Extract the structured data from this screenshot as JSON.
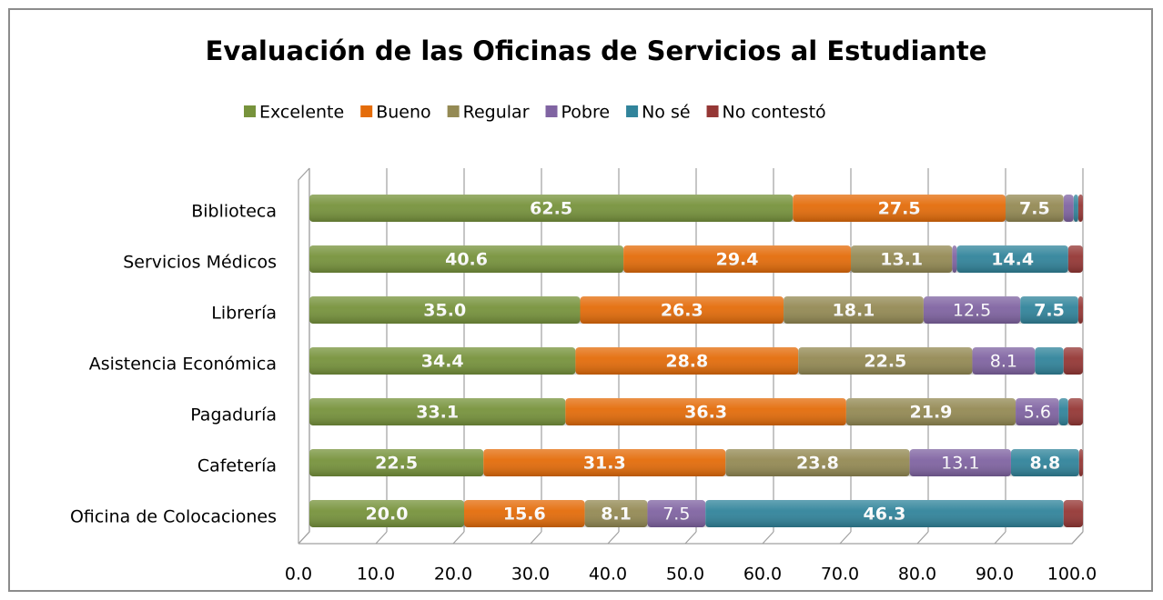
{
  "chart_data": {
    "type": "stacked-barh",
    "title": "Evaluación de las Oficinas de Servicios al Estudiante",
    "categories": [
      "Biblioteca",
      "Servicios Médicos",
      "Librería",
      "Asistencia Económica",
      "Pagaduría",
      "Cafetería",
      "Oficina de Colocaciones"
    ],
    "series": [
      {
        "name": "Excelente",
        "color": "#77933c",
        "values": [
          62.5,
          40.6,
          35.0,
          34.4,
          33.1,
          22.5,
          20.0
        ],
        "value_labels": [
          "62.5",
          "40.6",
          "35.0",
          "34.4",
          "33.1",
          "22.5",
          "20.0"
        ]
      },
      {
        "name": "Bueno",
        "color": "#e46c0a",
        "values": [
          27.5,
          29.4,
          26.3,
          28.8,
          36.3,
          31.3,
          15.6
        ],
        "value_labels": [
          "27.5",
          "29.4",
          "26.3",
          "28.8",
          "36.3",
          "31.3",
          "15.6"
        ]
      },
      {
        "name": "Regular",
        "color": "#948a54",
        "values": [
          7.5,
          13.1,
          18.1,
          22.5,
          21.9,
          23.8,
          8.1
        ],
        "value_labels": [
          "7.5",
          "13.1",
          "18.1",
          "22.5",
          "21.9",
          "23.8",
          "8.1"
        ]
      },
      {
        "name": "Pobre",
        "color": "#8064a2",
        "values": [
          1.3,
          0.6,
          12.5,
          8.1,
          5.6,
          13.1,
          7.5
        ],
        "value_labels": [
          null,
          null,
          "12.5",
          "8.1",
          "5.6",
          "13.1",
          "7.5"
        ]
      },
      {
        "name": "No sé",
        "color": "#31849b",
        "values": [
          0.6,
          14.4,
          7.5,
          3.7,
          1.2,
          8.8,
          46.3
        ],
        "value_labels": [
          null,
          "14.4",
          "7.5",
          null,
          null,
          "8.8",
          "46.3"
        ]
      },
      {
        "name": "No contestó",
        "color": "#953735",
        "values": [
          0.6,
          1.9,
          0.6,
          2.5,
          1.9,
          0.5,
          2.5
        ],
        "value_labels": [
          null,
          null,
          null,
          null,
          null,
          null,
          null
        ]
      }
    ],
    "xlim": [
      0,
      100
    ],
    "xticks": [
      {
        "value": 0,
        "label": "0.0"
      },
      {
        "value": 10,
        "label": "10.0"
      },
      {
        "value": 20,
        "label": "20.0"
      },
      {
        "value": 30,
        "label": "30.0"
      },
      {
        "value": 40,
        "label": "40.0"
      },
      {
        "value": 50,
        "label": "50.0"
      },
      {
        "value": 60,
        "label": "60.0"
      },
      {
        "value": 70,
        "label": "70.0"
      },
      {
        "value": 80,
        "label": "80.0"
      },
      {
        "value": 90,
        "label": "90.0"
      },
      {
        "value": 100,
        "label": "100.0"
      }
    ],
    "grid": true,
    "legend": "top"
  }
}
